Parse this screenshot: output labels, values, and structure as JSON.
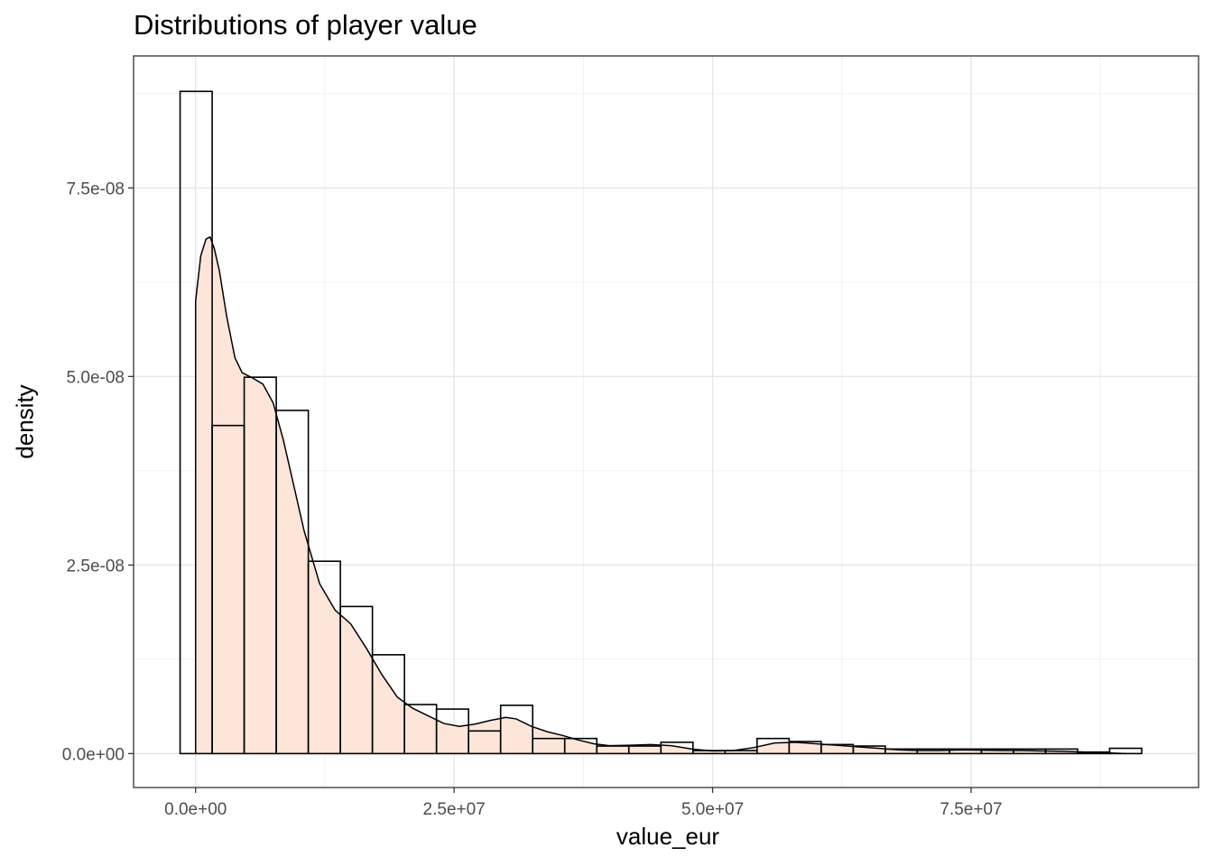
{
  "chart_data": {
    "type": "bar",
    "title": "Distributions of player value",
    "xlabel": "value_eur",
    "ylabel": "density",
    "xlim": [
      -6000000,
      97000000
    ],
    "ylim": [
      -4.5e-09,
      9.25e-08
    ],
    "x_ticks": [
      0,
      25000000,
      50000000,
      75000000
    ],
    "x_tick_labels": [
      "0.0e+00",
      "2.5e+07",
      "5.0e+07",
      "7.5e+07"
    ],
    "y_ticks": [
      0,
      2.5e-08,
      5e-08,
      7.5e-08
    ],
    "y_tick_labels": [
      "0.0e+00",
      "2.5e-08",
      "5.0e-08",
      "7.5e-08"
    ],
    "grid": true,
    "bin_width": 3100000,
    "series": [
      {
        "kind": "histogram",
        "fill": "none",
        "bin_starts": [
          -1500000,
          1600000,
          4700000,
          7800000,
          10900000,
          14000000,
          17100000,
          20200000,
          23300000,
          26400000,
          29500000,
          32600000,
          35700000,
          38800000,
          41900000,
          45000000,
          48100000,
          51200000,
          54300000,
          57400000,
          60500000,
          63600000,
          66700000,
          69800000,
          72900000,
          76000000,
          79100000,
          82200000,
          85300000,
          88400000
        ],
        "values": [
          8.78e-08,
          4.35e-08,
          4.99e-08,
          4.55e-08,
          2.55e-08,
          1.95e-08,
          1.31e-08,
          6.5e-09,
          5.9e-09,
          3e-09,
          6.4e-09,
          2e-09,
          2e-09,
          1e-09,
          1e-09,
          1.5e-09,
          4e-10,
          4e-10,
          2e-09,
          1.6e-09,
          1.2e-09,
          1e-09,
          6e-10,
          6e-10,
          6e-10,
          6e-10,
          6e-10,
          6e-10,
          2e-10,
          7e-10
        ]
      },
      {
        "kind": "density",
        "fill": "#fee5da",
        "x": [
          0,
          500000,
          1000000,
          1400000,
          1800000,
          2300000,
          3000000,
          3800000,
          4500000,
          5500000,
          6500000,
          7500000,
          8500000,
          9500000,
          10500000,
          12000000,
          13500000,
          15000000,
          16500000,
          18000000,
          19500000,
          21000000,
          22500000,
          24000000,
          25500000,
          27000000,
          28500000,
          30000000,
          31000000,
          32500000,
          34000000,
          35500000,
          37000000,
          38500000,
          40000000,
          42000000,
          44000000,
          46000000,
          48000000,
          50000000,
          52000000,
          54000000,
          56000000,
          58000000,
          60000000,
          62000000,
          64000000,
          66000000,
          68000000,
          70000000,
          72000000,
          74000000,
          76000000,
          78000000,
          80000000,
          82000000,
          84000000,
          86000000,
          88000000,
          90000000
        ],
        "y": [
          6e-08,
          6.6e-08,
          6.82e-08,
          6.85e-08,
          6.7e-08,
          6.4e-08,
          5.8e-08,
          5.25e-08,
          5.05e-08,
          4.98e-08,
          4.9e-08,
          4.65e-08,
          4.15e-08,
          3.55e-08,
          2.95e-08,
          2.25e-08,
          1.9e-08,
          1.72e-08,
          1.4e-08,
          1.05e-08,
          7.5e-09,
          6e-09,
          5e-09,
          4e-09,
          3.6e-09,
          3.9e-09,
          4.4e-09,
          4.8e-09,
          4.6e-09,
          3.6e-09,
          2.9e-09,
          2.4e-09,
          1.8e-09,
          1.3e-09,
          1.05e-09,
          1.1e-09,
          1.2e-09,
          1.05e-09,
          6e-10,
          3.5e-10,
          4e-10,
          8e-10,
          1.4e-09,
          1.5e-09,
          1.3e-09,
          1.1e-09,
          9e-10,
          7e-10,
          5e-10,
          4e-10,
          4e-10,
          5e-10,
          4.5e-10,
          4e-10,
          4e-10,
          3.5e-10,
          3e-10,
          2e-10,
          1e-10,
          0
        ]
      }
    ]
  }
}
